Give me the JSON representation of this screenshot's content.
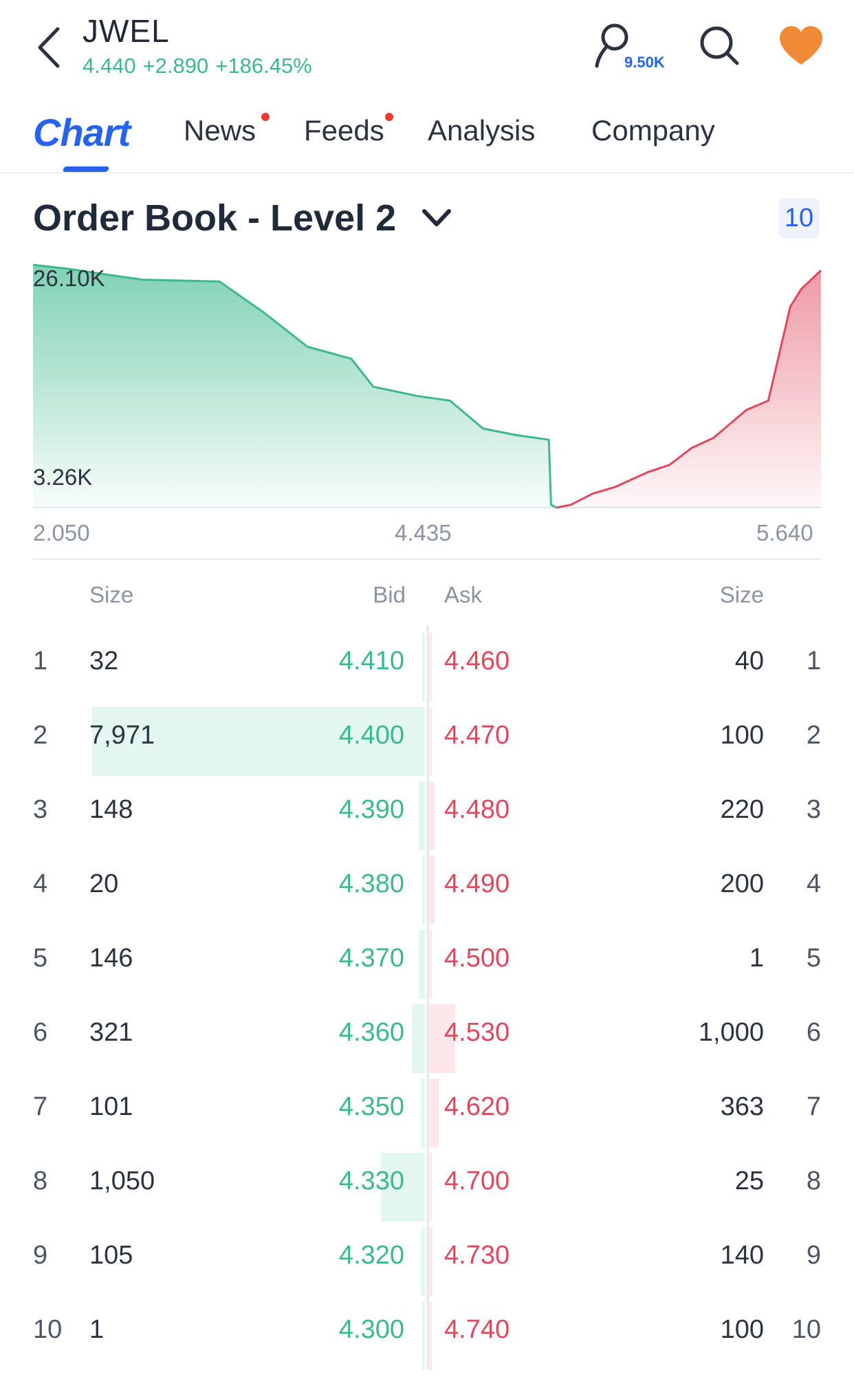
{
  "header": {
    "ticker": "JWEL",
    "price": "4.440",
    "change": "+2.890",
    "change_pct": "+186.45%",
    "watchers_count": "9.50K",
    "icons": [
      "back-icon",
      "watcher-icon",
      "search-icon",
      "heart-icon"
    ],
    "colors": {
      "up": "#3cb98c",
      "accent": "#2563eb",
      "fav": "#f08a36"
    }
  },
  "tabs": [
    {
      "label": "Chart",
      "active": true,
      "has_dot": false
    },
    {
      "label": "News",
      "active": false,
      "has_dot": true
    },
    {
      "label": "Feeds",
      "active": false,
      "has_dot": true
    },
    {
      "label": "Analysis",
      "active": false,
      "has_dot": false
    },
    {
      "label": "Company",
      "active": false,
      "has_dot": false
    }
  ],
  "order_book": {
    "title": "Order Book - Level 2",
    "depth_levels": "10",
    "columns": {
      "size_left": "Size",
      "bid": "Bid",
      "ask": "Ask",
      "size_right": "Size"
    },
    "rows": [
      {
        "rank": "1",
        "bid_size": "32",
        "bid": "4.410",
        "ask": "4.460",
        "ask_size": "40",
        "bid_share": 0.004,
        "ask_share": 0.04
      },
      {
        "rank": "2",
        "bid_size": "7,971",
        "bid": "4.400",
        "ask": "4.470",
        "ask_size": "100",
        "bid_share": 1.0,
        "ask_share": 0.1
      },
      {
        "rank": "3",
        "bid_size": "148",
        "bid": "4.390",
        "ask": "4.480",
        "ask_size": "220",
        "bid_share": 0.019,
        "ask_share": 0.22
      },
      {
        "rank": "4",
        "bid_size": "20",
        "bid": "4.380",
        "ask": "4.490",
        "ask_size": "200",
        "bid_share": 0.003,
        "ask_share": 0.2
      },
      {
        "rank": "5",
        "bid_size": "146",
        "bid": "4.370",
        "ask": "4.500",
        "ask_size": "1",
        "bid_share": 0.018,
        "ask_share": 0.001
      },
      {
        "rank": "6",
        "bid_size": "321",
        "bid": "4.360",
        "ask": "4.530",
        "ask_size": "1,000",
        "bid_share": 0.04,
        "ask_share": 1.0
      },
      {
        "rank": "7",
        "bid_size": "101",
        "bid": "4.350",
        "ask": "4.620",
        "ask_size": "363",
        "bid_share": 0.013,
        "ask_share": 0.363
      },
      {
        "rank": "8",
        "bid_size": "1,050",
        "bid": "4.330",
        "ask": "4.700",
        "ask_size": "25",
        "bid_share": 0.132,
        "ask_share": 0.025
      },
      {
        "rank": "9",
        "bid_size": "105",
        "bid": "4.320",
        "ask": "4.730",
        "ask_size": "140",
        "bid_share": 0.013,
        "ask_share": 0.14
      },
      {
        "rank": "10",
        "bid_size": "1",
        "bid": "4.300",
        "ask": "4.740",
        "ask_size": "100",
        "bid_share": 0.001,
        "ask_share": 0.1
      }
    ]
  },
  "chart_data": {
    "type": "area",
    "title": "",
    "xlabel": "",
    "ylabel": "",
    "x_tick_labels": [
      "2.050",
      "4.435",
      "5.640"
    ],
    "y_tick_labels": [
      "26.10K",
      "3.26K"
    ],
    "xlim": [
      2.05,
      5.64
    ],
    "ylim": [
      0,
      26100
    ],
    "grid": false,
    "series": [
      {
        "color": "#3cb98c",
        "x": [
          2.05,
          2.2,
          2.4,
          2.55,
          2.9,
          3.1,
          3.3,
          3.5,
          3.6,
          3.8,
          3.95,
          4.1,
          4.25,
          4.4,
          4.41,
          4.435
        ],
        "y": [
          26100,
          25700,
          25000,
          24500,
          24300,
          21000,
          17300,
          16000,
          13000,
          12000,
          11500,
          8500,
          7800,
          7300,
          300,
          0
        ]
      },
      {
        "color": "#e0475b",
        "x": [
          4.435,
          4.5,
          4.6,
          4.7,
          4.85,
          4.95,
          5.05,
          5.15,
          5.3,
          5.4,
          5.5,
          5.55,
          5.64
        ],
        "y": [
          0,
          300,
          1500,
          2200,
          3800,
          4600,
          6400,
          7500,
          10500,
          11500,
          21600,
          23500,
          25500
        ]
      }
    ]
  }
}
